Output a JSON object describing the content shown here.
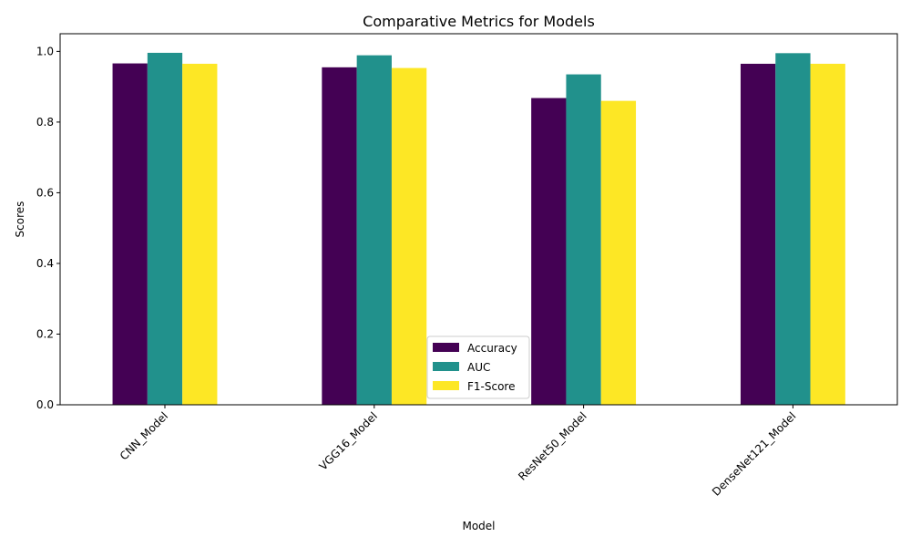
{
  "chart_data": {
    "type": "bar",
    "title": "Comparative Metrics for Models",
    "xlabel": "Model",
    "ylabel": "Scores",
    "categories": [
      "CNN_Model",
      "VGG16_Model",
      "ResNet50_Model",
      "DenseNet121_Model"
    ],
    "series": [
      {
        "name": "Accuracy",
        "color": "#440154",
        "values": [
          0.966,
          0.955,
          0.868,
          0.965
        ]
      },
      {
        "name": "AUC",
        "color": "#21918c",
        "values": [
          0.996,
          0.989,
          0.935,
          0.995
        ]
      },
      {
        "name": "F1-Score",
        "color": "#fde725",
        "values": [
          0.965,
          0.953,
          0.86,
          0.965
        ]
      }
    ],
    "ylim": [
      0,
      1.05
    ],
    "yticks": [
      0.0,
      0.2,
      0.4,
      0.6,
      0.8,
      1.0
    ],
    "ytick_labels": [
      "0.0",
      "0.2",
      "0.4",
      "0.6",
      "0.8",
      "1.0"
    ],
    "xtick_rotation": 45,
    "grid": false,
    "legend_position": "bottom-center"
  }
}
